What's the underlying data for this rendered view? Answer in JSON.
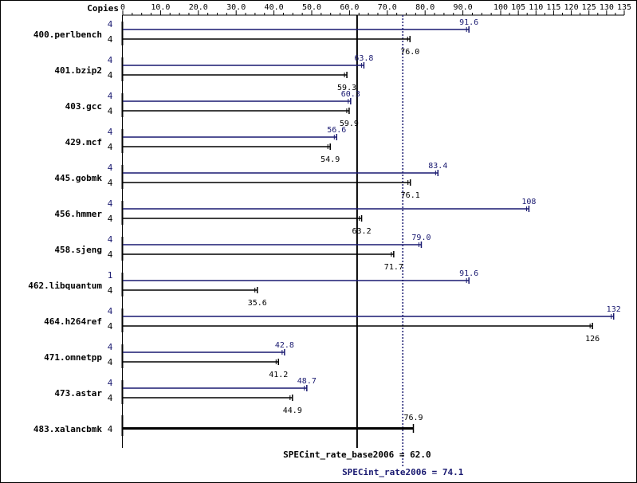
{
  "chart_data": {
    "type": "bar",
    "orientation": "horizontal",
    "copies_label": "Copies",
    "x_ticks": [
      "0",
      "10.0",
      "20.0",
      "30.0",
      "40.0",
      "50.0",
      "60.0",
      "70.0",
      "80.0",
      "90.0",
      "100",
      "105",
      "110",
      "115",
      "120",
      "125",
      "130",
      "135"
    ],
    "x_tick_values": [
      0,
      10,
      20,
      30,
      40,
      50,
      60,
      70,
      80,
      90,
      100,
      105,
      110,
      115,
      120,
      125,
      130,
      135
    ],
    "xlim": [
      0,
      135
    ],
    "grid": false,
    "colors": {
      "peak": "#191970",
      "base": "#000000"
    },
    "benchmarks": [
      {
        "name": "400.perlbench",
        "peak_copies": "4",
        "peak": 91.6,
        "peak_label": "91.6",
        "base_copies": "4",
        "base": 76.0,
        "base_label": "76.0"
      },
      {
        "name": "401.bzip2",
        "peak_copies": "4",
        "peak": 63.8,
        "peak_label": "63.8",
        "base_copies": "4",
        "base": 59.3,
        "base_label": "59.3"
      },
      {
        "name": "403.gcc",
        "peak_copies": "4",
        "peak": 60.3,
        "peak_label": "60.3",
        "base_copies": "4",
        "base": 59.9,
        "base_label": "59.9"
      },
      {
        "name": "429.mcf",
        "peak_copies": "4",
        "peak": 56.6,
        "peak_label": "56.6",
        "base_copies": "4",
        "base": 54.9,
        "base_label": "54.9"
      },
      {
        "name": "445.gobmk",
        "peak_copies": "4",
        "peak": 83.4,
        "peak_label": "83.4",
        "base_copies": "4",
        "base": 76.1,
        "base_label": "76.1"
      },
      {
        "name": "456.hmmer",
        "peak_copies": "4",
        "peak": 108,
        "peak_label": "108",
        "base_copies": "4",
        "base": 63.2,
        "base_label": "63.2"
      },
      {
        "name": "458.sjeng",
        "peak_copies": "4",
        "peak": 79.0,
        "peak_label": "79.0",
        "base_copies": "4",
        "base": 71.7,
        "base_label": "71.7"
      },
      {
        "name": "462.libquantum",
        "peak_copies": "1",
        "peak": 91.6,
        "peak_label": "91.6",
        "base_copies": "4",
        "base": 35.6,
        "base_label": "35.6"
      },
      {
        "name": "464.h264ref",
        "peak_copies": "4",
        "peak": 132,
        "peak_label": "132",
        "base_copies": "4",
        "base": 126,
        "base_label": "126"
      },
      {
        "name": "471.omnetpp",
        "peak_copies": "4",
        "peak": 42.8,
        "peak_label": "42.8",
        "base_copies": "4",
        "base": 41.2,
        "base_label": "41.2"
      },
      {
        "name": "473.astar",
        "peak_copies": "4",
        "peak": 48.7,
        "peak_label": "48.7",
        "base_copies": "4",
        "base": 44.9,
        "base_label": "44.9"
      },
      {
        "name": "483.xalancbmk",
        "single": true,
        "base_copies": "4",
        "base": 76.9,
        "base_label": "76.9"
      }
    ],
    "reference_lines": [
      {
        "label": "SPECint_rate_base2006 = 62.0",
        "value": 62.0,
        "style": "solid",
        "color": "#000000"
      },
      {
        "label": "SPECint_rate2006 = 74.1",
        "value": 74.1,
        "style": "dotted",
        "color": "#191970"
      }
    ]
  }
}
